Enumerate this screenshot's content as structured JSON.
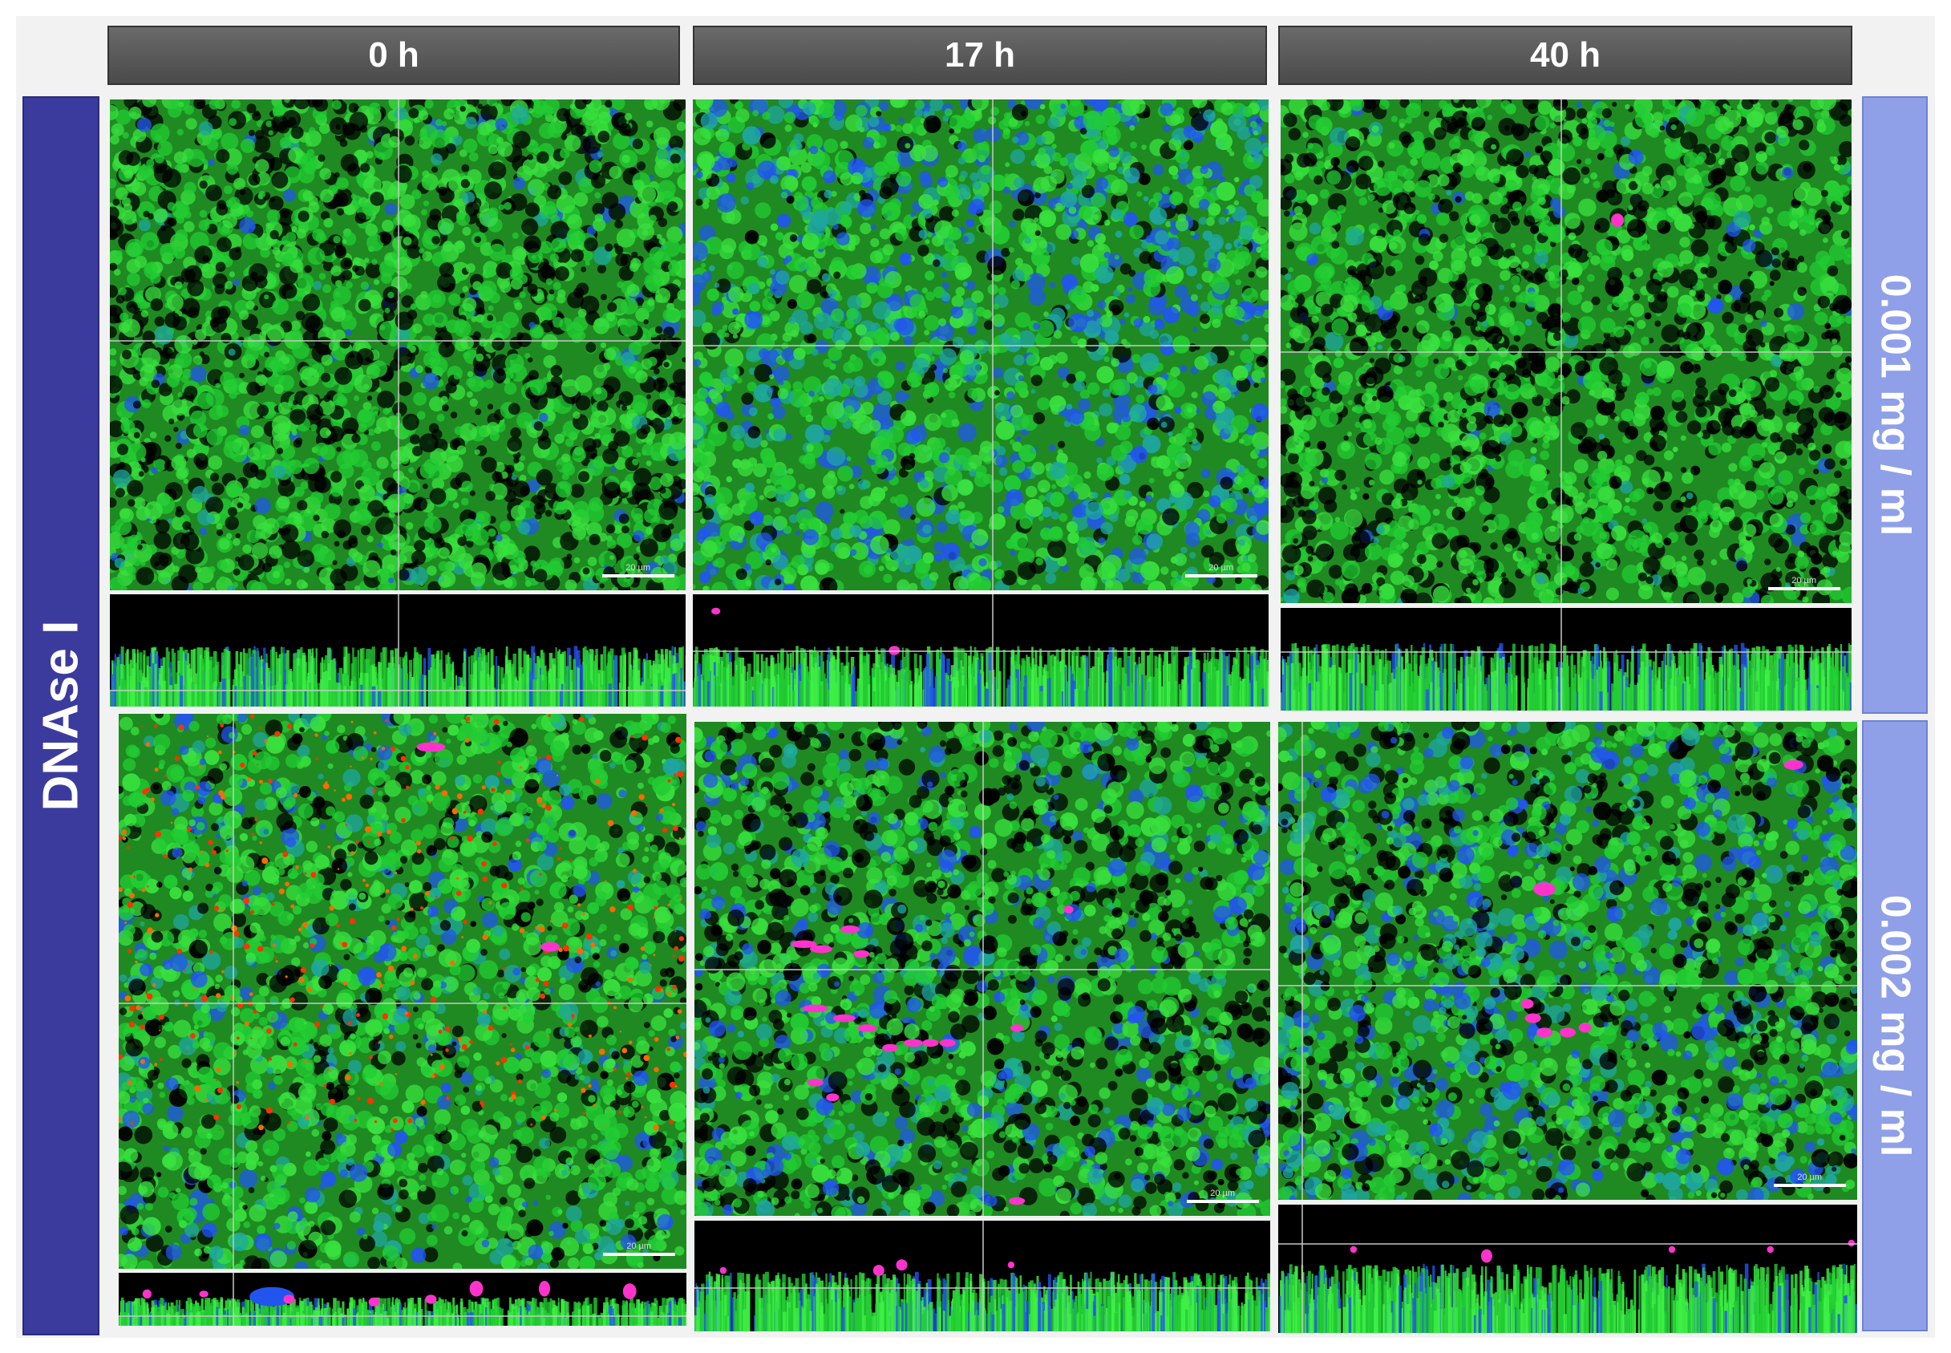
{
  "columns": [
    {
      "label": "0 h"
    },
    {
      "label": "17 h"
    },
    {
      "label": "40 h"
    }
  ],
  "row_group_label": "DNAse I",
  "rows": [
    {
      "label": "0.001 mg / ml"
    },
    {
      "label": "0.002 mg / ml"
    }
  ],
  "scale_bar_label": "20 µm",
  "colors": {
    "header_bg": "#595959",
    "row_group_bg": "#3b3b9e",
    "row_label_bg": "#8fa0e8",
    "green_stain": "#22cc33",
    "blue_stain": "#2255ee",
    "magenta_stain": "#ff33cc",
    "red_stain": "#ff3300"
  }
}
